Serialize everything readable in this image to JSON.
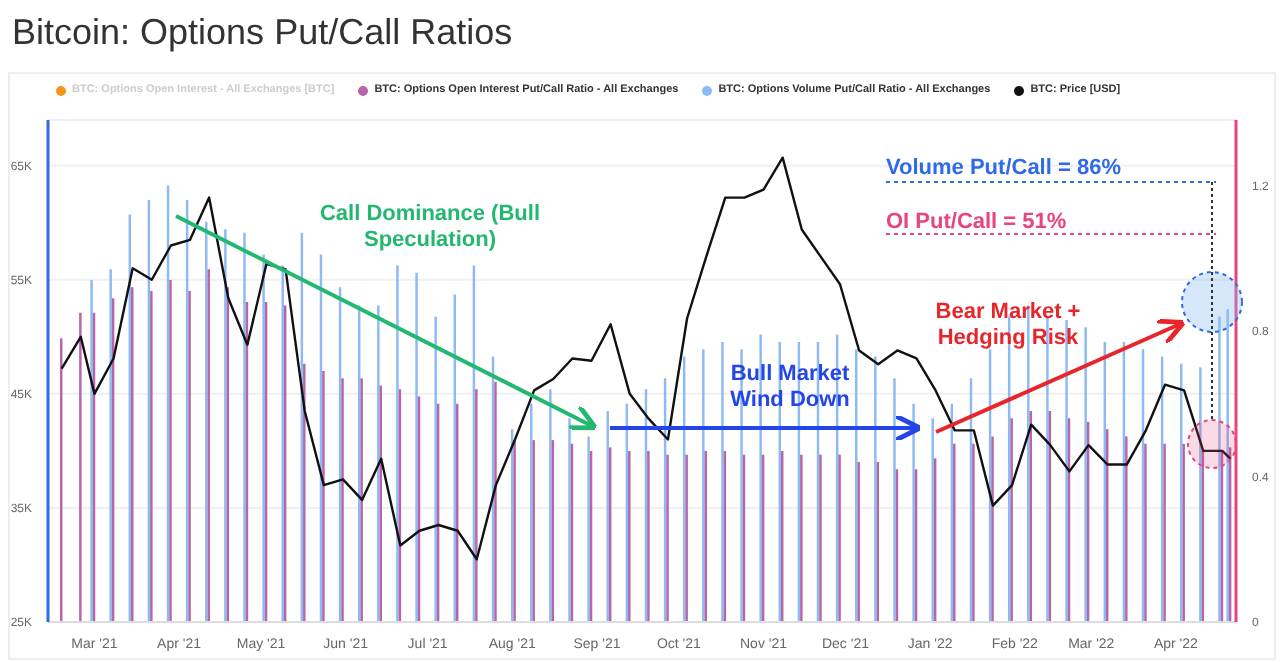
{
  "chart_data": {
    "type": "bar",
    "title": "Bitcoin: Options Put/Call Ratios",
    "x": [
      "2021-02-17",
      "2021-02-24",
      "2021-03-01",
      "2021-03-08",
      "2021-03-15",
      "2021-03-22",
      "2021-03-29",
      "2021-04-05",
      "2021-04-12",
      "2021-04-19",
      "2021-04-26",
      "2021-05-03",
      "2021-05-10",
      "2021-05-17",
      "2021-05-24",
      "2021-05-31",
      "2021-06-07",
      "2021-06-14",
      "2021-06-21",
      "2021-06-28",
      "2021-07-05",
      "2021-07-12",
      "2021-07-19",
      "2021-07-26",
      "2021-08-02",
      "2021-08-09",
      "2021-08-16",
      "2021-08-23",
      "2021-08-30",
      "2021-09-06",
      "2021-09-13",
      "2021-09-20",
      "2021-09-27",
      "2021-10-04",
      "2021-10-11",
      "2021-10-18",
      "2021-10-25",
      "2021-11-01",
      "2021-11-08",
      "2021-11-15",
      "2021-11-22",
      "2021-11-29",
      "2021-12-06",
      "2021-12-13",
      "2021-12-20",
      "2021-12-27",
      "2022-01-03",
      "2022-01-10",
      "2022-01-17",
      "2022-01-24",
      "2022-01-31",
      "2022-02-07",
      "2022-02-14",
      "2022-02-21",
      "2022-02-28",
      "2022-03-07",
      "2022-03-14",
      "2022-03-21",
      "2022-03-28",
      "2022-04-04",
      "2022-04-11",
      "2022-04-18",
      "2022-04-21"
    ],
    "series": [
      {
        "name": "BTC: Options Open Interest - All Exchanges [BTC]",
        "color": "#f7931a",
        "axis": "y2",
        "values": [
          null,
          null,
          null,
          null,
          null,
          null,
          null,
          null,
          null,
          null,
          null,
          null,
          null,
          null,
          null,
          null,
          null,
          null,
          null,
          null,
          null,
          null,
          null,
          null,
          null,
          null,
          null,
          null,
          null,
          null,
          null,
          null,
          null,
          null,
          null,
          null,
          null,
          null,
          null,
          null,
          null,
          null,
          null,
          null,
          null,
          null,
          null,
          null,
          null,
          null,
          null,
          null,
          null,
          null,
          null,
          null,
          null,
          null,
          null,
          null,
          null,
          null,
          null
        ]
      },
      {
        "name": "BTC: Options Open Interest Put/Call Ratio - All Exchanges",
        "color": "#b565a8",
        "axis": "y2",
        "values": [
          0.78,
          0.85,
          0.85,
          0.89,
          0.92,
          0.91,
          0.94,
          0.91,
          0.97,
          0.92,
          0.88,
          0.88,
          0.87,
          0.71,
          0.69,
          0.67,
          0.67,
          0.65,
          0.64,
          0.62,
          0.6,
          0.6,
          0.64,
          0.66,
          0.5,
          0.5,
          0.5,
          0.49,
          0.47,
          0.48,
          0.47,
          0.47,
          0.46,
          0.46,
          0.47,
          0.47,
          0.46,
          0.46,
          0.47,
          0.46,
          0.46,
          0.46,
          0.44,
          0.44,
          0.42,
          0.42,
          0.45,
          0.49,
          0.49,
          0.51,
          0.56,
          0.58,
          0.58,
          0.56,
          0.55,
          0.53,
          0.51,
          0.49,
          0.49,
          0.49,
          0.47,
          0.47,
          0.48
        ]
      },
      {
        "name": "BTC: Options Volume Put/Call Ratio - All Exchanges",
        "color": "#8dbaf2",
        "axis": "y2",
        "values": [
          null,
          null,
          0.94,
          0.97,
          1.12,
          1.16,
          1.2,
          1.16,
          1.1,
          1.08,
          1.07,
          1.01,
          0.98,
          1.07,
          1.01,
          0.92,
          0.87,
          0.87,
          0.98,
          0.96,
          0.84,
          0.9,
          0.98,
          0.73,
          0.53,
          0.6,
          0.64,
          0.56,
          0.51,
          0.58,
          0.6,
          0.64,
          0.67,
          0.73,
          0.75,
          0.77,
          0.75,
          0.79,
          0.77,
          0.77,
          0.77,
          0.79,
          0.75,
          0.73,
          0.67,
          0.6,
          0.56,
          0.6,
          0.67,
          0.75,
          0.84,
          0.87,
          0.84,
          0.83,
          0.81,
          0.77,
          0.77,
          0.75,
          0.73,
          0.71,
          0.7,
          0.84,
          0.86
        ]
      },
      {
        "name": "BTC: Price [USD]",
        "color": "#111111",
        "type": "line",
        "axis": "y",
        "values": [
          47200,
          50000,
          45000,
          48100,
          56000,
          55000,
          58000,
          58500,
          62200,
          53400,
          49300,
          56400,
          55900,
          43500,
          37000,
          37500,
          35700,
          39300,
          31700,
          33000,
          33500,
          33000,
          30500,
          37000,
          41000,
          45300,
          46300,
          48100,
          47900,
          51100,
          45000,
          42800,
          41000,
          51600,
          57000,
          62200,
          62200,
          62900,
          65700,
          59400,
          57000,
          54600,
          48800,
          47600,
          48800,
          48100,
          45300,
          41800,
          41800,
          35200,
          37000,
          42300,
          40500,
          38200,
          40500,
          38800,
          38800,
          41800,
          45800,
          45300,
          40000,
          40000,
          39300
        ]
      }
    ],
    "xlim": [
      "2021-02-12",
      "2022-04-23"
    ],
    "xticks": [
      {
        "value": "2021-03-01",
        "label": "Mar '21"
      },
      {
        "value": "2021-04-01",
        "label": "Apr '21"
      },
      {
        "value": "2021-05-01",
        "label": "May '21"
      },
      {
        "value": "2021-06-01",
        "label": "Jun '21"
      },
      {
        "value": "2021-07-01",
        "label": "Jul '21"
      },
      {
        "value": "2021-08-01",
        "label": "Aug '21"
      },
      {
        "value": "2021-09-01",
        "label": "Sep '21"
      },
      {
        "value": "2021-10-01",
        "label": "Oct '21"
      },
      {
        "value": "2021-11-01",
        "label": "Nov '21"
      },
      {
        "value": "2021-12-01",
        "label": "Dec '21"
      },
      {
        "value": "2022-01-01",
        "label": "Jan '22"
      },
      {
        "value": "2022-02-01",
        "label": "Feb '22"
      },
      {
        "value": "2022-03-01",
        "label": "Mar '22"
      },
      {
        "value": "2022-04-01",
        "label": "Apr '22"
      }
    ],
    "ylim": [
      25000,
      69000
    ],
    "yticks": [
      {
        "value": 25000,
        "label": "25K"
      },
      {
        "value": 35000,
        "label": "35K"
      },
      {
        "value": 45000,
        "label": "45K"
      },
      {
        "value": 55000,
        "label": "55K"
      },
      {
        "value": 65000,
        "label": "65K"
      }
    ],
    "y2lim": [
      0,
      1.38
    ],
    "y2ticks": [
      0,
      0.4,
      0.8,
      1.2
    ],
    "grid": "y",
    "legend": "top",
    "annotations": [
      "Call Dominance (Bull Speculation)",
      "Bull Market Wind Down",
      "Bear Market + Hedging Risk",
      "Volume Put/Call = 86%",
      "OI Put/Call = 51%"
    ]
  }
}
